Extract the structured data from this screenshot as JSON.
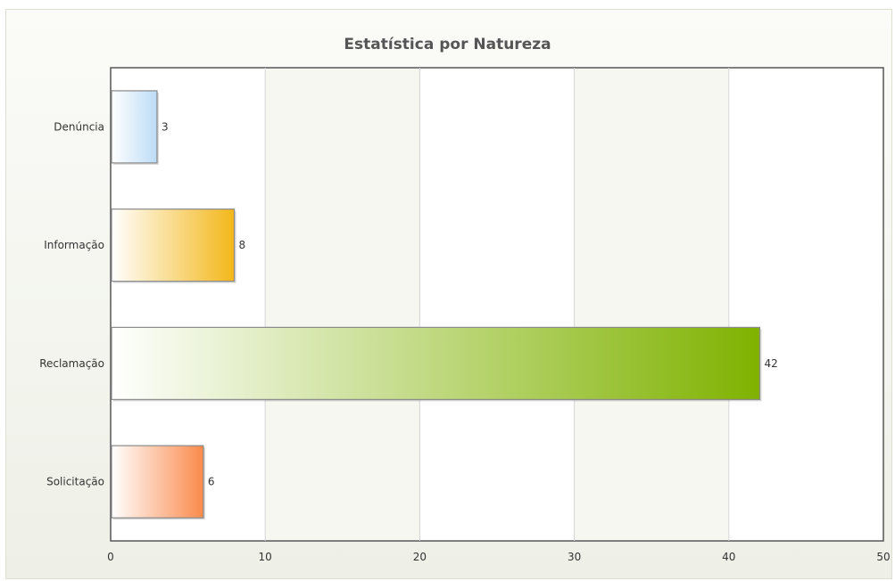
{
  "chart_data": {
    "type": "bar",
    "orientation": "horizontal",
    "title": "Estatística por Natureza",
    "xlabel": "",
    "ylabel": "",
    "categories": [
      "Denúncia",
      "Informação",
      "Reclamação",
      "Solicitação"
    ],
    "values": [
      3,
      8,
      42,
      6
    ],
    "xlim": [
      0,
      50
    ],
    "x_ticks": [
      0,
      10,
      20,
      30,
      40,
      50
    ],
    "grid": true,
    "legend": "none",
    "colors": [
      "#bcdcf6",
      "#f3b71a",
      "#7fb200",
      "#fa8a4c"
    ]
  }
}
